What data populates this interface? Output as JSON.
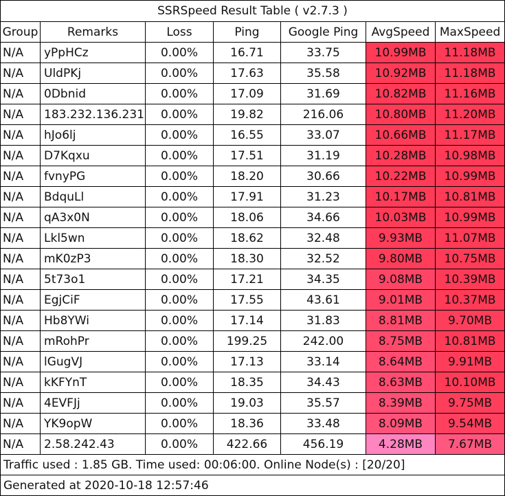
{
  "title": "SSRSpeed Result Table ( v2.7.3 )",
  "headers": [
    "Group",
    "Remarks",
    "Loss",
    "Ping",
    "Google Ping",
    "AvgSpeed",
    "MaxSpeed"
  ],
  "rows": [
    {
      "group": "N/A",
      "remarks": "yPpHCz",
      "loss": "0.00%",
      "ping": "16.71",
      "google_ping": "33.75",
      "avg": "10.99MB",
      "max": "11.18MB",
      "avg_color": "#ff3b57",
      "max_color": "#ff3b57"
    },
    {
      "group": "N/A",
      "remarks": "UldPKj",
      "loss": "0.00%",
      "ping": "17.63",
      "google_ping": "35.58",
      "avg": "10.92MB",
      "max": "11.18MB",
      "avg_color": "#ff3b57",
      "max_color": "#ff3b57"
    },
    {
      "group": "N/A",
      "remarks": "0Dbnid",
      "loss": "0.00%",
      "ping": "17.09",
      "google_ping": "31.69",
      "avg": "10.82MB",
      "max": "11.16MB",
      "avg_color": "#ff3b57",
      "max_color": "#ff3b57"
    },
    {
      "group": "N/A",
      "remarks": "183.232.136.231",
      "loss": "0.00%",
      "ping": "19.82",
      "google_ping": "216.06",
      "avg": "10.80MB",
      "max": "11.20MB",
      "avg_color": "#ff3b57",
      "max_color": "#ff3b57"
    },
    {
      "group": "N/A",
      "remarks": "hJo6lj",
      "loss": "0.00%",
      "ping": "16.55",
      "google_ping": "33.07",
      "avg": "10.66MB",
      "max": "11.17MB",
      "avg_color": "#ff3b57",
      "max_color": "#ff3b57"
    },
    {
      "group": "N/A",
      "remarks": "D7Kqxu",
      "loss": "0.00%",
      "ping": "17.51",
      "google_ping": "31.19",
      "avg": "10.28MB",
      "max": "10.98MB",
      "avg_color": "#ff3b57",
      "max_color": "#ff3b57"
    },
    {
      "group": "N/A",
      "remarks": "fvnyPG",
      "loss": "0.00%",
      "ping": "18.20",
      "google_ping": "30.66",
      "avg": "10.22MB",
      "max": "10.99MB",
      "avg_color": "#ff3b57",
      "max_color": "#ff3b57"
    },
    {
      "group": "N/A",
      "remarks": "BdquLl",
      "loss": "0.00%",
      "ping": "17.91",
      "google_ping": "31.23",
      "avg": "10.17MB",
      "max": "10.81MB",
      "avg_color": "#ff3b57",
      "max_color": "#ff3b57"
    },
    {
      "group": "N/A",
      "remarks": "qA3x0N",
      "loss": "0.00%",
      "ping": "18.06",
      "google_ping": "34.66",
      "avg": "10.03MB",
      "max": "10.99MB",
      "avg_color": "#ff3b57",
      "max_color": "#ff3b57"
    },
    {
      "group": "N/A",
      "remarks": "Lkl5wn",
      "loss": "0.00%",
      "ping": "18.62",
      "google_ping": "32.48",
      "avg": "9.93MB",
      "max": "11.07MB",
      "avg_color": "#ff3d5a",
      "max_color": "#ff3b57"
    },
    {
      "group": "N/A",
      "remarks": "mK0zP3",
      "loss": "0.00%",
      "ping": "18.30",
      "google_ping": "32.52",
      "avg": "9.80MB",
      "max": "10.75MB",
      "avg_color": "#ff3d5a",
      "max_color": "#ff3b57"
    },
    {
      "group": "N/A",
      "remarks": "5t73o1",
      "loss": "0.00%",
      "ping": "17.21",
      "google_ping": "34.35",
      "avg": "9.08MB",
      "max": "10.39MB",
      "avg_color": "#ff4566",
      "max_color": "#ff3b57"
    },
    {
      "group": "N/A",
      "remarks": "EgjCiF",
      "loss": "0.00%",
      "ping": "17.55",
      "google_ping": "43.61",
      "avg": "9.01MB",
      "max": "10.37MB",
      "avg_color": "#ff4566",
      "max_color": "#ff3b57"
    },
    {
      "group": "N/A",
      "remarks": "Hb8YWi",
      "loss": "0.00%",
      "ping": "17.14",
      "google_ping": "31.83",
      "avg": "8.81MB",
      "max": "9.70MB",
      "avg_color": "#ff4a6c",
      "max_color": "#ff3e5c"
    },
    {
      "group": "N/A",
      "remarks": "mRohPr",
      "loss": "0.00%",
      "ping": "199.25",
      "google_ping": "242.00",
      "avg": "8.75MB",
      "max": "10.81MB",
      "avg_color": "#ff4a6c",
      "max_color": "#ff3b57"
    },
    {
      "group": "N/A",
      "remarks": "lGugVJ",
      "loss": "0.00%",
      "ping": "17.13",
      "google_ping": "33.14",
      "avg": "8.64MB",
      "max": "9.91MB",
      "avg_color": "#ff4c70",
      "max_color": "#ff3d5a"
    },
    {
      "group": "N/A",
      "remarks": "kKFYnT",
      "loss": "0.00%",
      "ping": "18.35",
      "google_ping": "34.43",
      "avg": "8.63MB",
      "max": "10.10MB",
      "avg_color": "#ff4c70",
      "max_color": "#ff3b57"
    },
    {
      "group": "N/A",
      "remarks": "4EVFJj",
      "loss": "0.00%",
      "ping": "19.03",
      "google_ping": "35.57",
      "avg": "8.39MB",
      "max": "9.75MB",
      "avg_color": "#ff4f74",
      "max_color": "#ff3e5c"
    },
    {
      "group": "N/A",
      "remarks": "YK9opW",
      "loss": "0.00%",
      "ping": "18.36",
      "google_ping": "33.48",
      "avg": "8.09MB",
      "max": "9.54MB",
      "avg_color": "#ff537a",
      "max_color": "#ff405f"
    },
    {
      "group": "N/A",
      "remarks": "2.58.242.43",
      "loss": "0.00%",
      "ping": "422.66",
      "google_ping": "456.19",
      "avg": "4.28MB",
      "max": "7.67MB",
      "avg_color": "#ff85c0",
      "max_color": "#ff5880"
    }
  ],
  "traffic_line": "Traffic used : 1.85 GB. Time used: 00:06:00. Online Node(s) : [20/20]",
  "generated_line": "Generated at 2020-10-18 12:57:46"
}
